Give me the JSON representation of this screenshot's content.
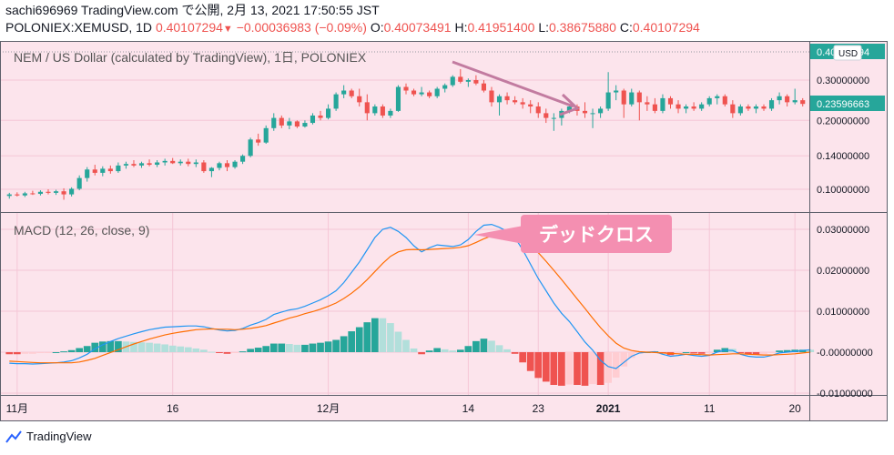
{
  "header": {
    "user_line": "sachi696969 TradingView.com で公開, 2月 13, 2021 17:50:55 JST",
    "symbol": "POLONIEX:XEMUSD, 1D",
    "last": "0.40107294",
    "change": "−0.00036983 (−0.09%)",
    "o_label": "O:",
    "o_value": "0.40073491",
    "h_label": "H:",
    "h_value": "0.41951400",
    "l_label": "L:",
    "l_value": "0.38675880",
    "c_label": "C:",
    "c_value": "0.40107294"
  },
  "price_pane": {
    "legend": "NEM / US Dollar (calculated by TradingView), 1日, POLONIEX",
    "last_price_tag": "0.40107294",
    "current_tag": "0.23596663",
    "currency": "USD"
  },
  "macd_pane": {
    "legend": "MACD (12, 26, close, 9)",
    "annotation": "デッドクロス"
  },
  "footer": {
    "brand": "TradingView"
  },
  "colors": {
    "up": "#26a69a",
    "down": "#ef5350",
    "macd": "#2196f3",
    "signal": "#ff6d00",
    "hist_up_strong": "#26a69a",
    "hist_up_weak": "#b2dfdb",
    "hist_down_strong": "#ef5350",
    "hist_down_weak": "#ffcdd2",
    "background": "#fce4ec",
    "annotation": "#f48fb1",
    "arrow": "#c27ba0"
  },
  "chart_data": [
    {
      "type": "candlestick",
      "title": "NEM / US Dollar (calculated by TradingView), 1日, POLONIEX",
      "y_axis": {
        "scale": "log",
        "ticks": [
          0.1,
          0.14,
          0.2,
          0.3
        ],
        "tick_labels": [
          "0.10000000",
          "0.14000000",
          "0.20000000",
          "0.30000000"
        ]
      },
      "x_axis": {
        "tick_labels": [
          "11月",
          "16",
          "12月",
          "14",
          "23",
          "2021",
          "11",
          "20"
        ]
      },
      "ohlc": [
        [
          0.0935,
          0.0965,
          0.091,
          0.095
        ],
        [
          0.095,
          0.097,
          0.093,
          0.094
        ],
        [
          0.094,
          0.0975,
          0.0925,
          0.096
        ],
        [
          0.096,
          0.0985,
          0.0945,
          0.0955
        ],
        [
          0.0955,
          0.099,
          0.094,
          0.0975
        ],
        [
          0.0975,
          0.1,
          0.095,
          0.0965
        ],
        [
          0.0965,
          0.0995,
          0.0945,
          0.098
        ],
        [
          0.098,
          0.101,
          0.09,
          0.095
        ],
        [
          0.095,
          0.102,
          0.093,
          0.1005
        ],
        [
          0.1005,
          0.115,
          0.099,
          0.112
        ],
        [
          0.112,
          0.125,
          0.108,
          0.122
        ],
        [
          0.122,
          0.128,
          0.115,
          0.118
        ],
        [
          0.118,
          0.126,
          0.114,
          0.123
        ],
        [
          0.123,
          0.127,
          0.117,
          0.12
        ],
        [
          0.12,
          0.131,
          0.118,
          0.127
        ],
        [
          0.127,
          0.132,
          0.123,
          0.129
        ],
        [
          0.129,
          0.134,
          0.125,
          0.127
        ],
        [
          0.127,
          0.132,
          0.124,
          0.13
        ],
        [
          0.13,
          0.135,
          0.126,
          0.128
        ],
        [
          0.128,
          0.134,
          0.125,
          0.131
        ],
        [
          0.131,
          0.136,
          0.127,
          0.133
        ],
        [
          0.133,
          0.137,
          0.129,
          0.13
        ],
        [
          0.13,
          0.135,
          0.127,
          0.132
        ],
        [
          0.132,
          0.136,
          0.126,
          0.129
        ],
        [
          0.129,
          0.135,
          0.125,
          0.131
        ],
        [
          0.131,
          0.134,
          0.118,
          0.12
        ],
        [
          0.12,
          0.125,
          0.113,
          0.124
        ],
        [
          0.124,
          0.132,
          0.121,
          0.13
        ],
        [
          0.13,
          0.134,
          0.12,
          0.125
        ],
        [
          0.125,
          0.134,
          0.123,
          0.132
        ],
        [
          0.132,
          0.142,
          0.129,
          0.14
        ],
        [
          0.14,
          0.168,
          0.138,
          0.165
        ],
        [
          0.165,
          0.175,
          0.155,
          0.16
        ],
        [
          0.16,
          0.19,
          0.158,
          0.185
        ],
        [
          0.185,
          0.215,
          0.18,
          0.205
        ],
        [
          0.205,
          0.21,
          0.185,
          0.19
        ],
        [
          0.19,
          0.205,
          0.183,
          0.198
        ],
        [
          0.198,
          0.2,
          0.185,
          0.188
        ],
        [
          0.188,
          0.2,
          0.186,
          0.195
        ],
        [
          0.195,
          0.215,
          0.192,
          0.21
        ],
        [
          0.21,
          0.22,
          0.2,
          0.205
        ],
        [
          0.205,
          0.235,
          0.202,
          0.225
        ],
        [
          0.225,
          0.265,
          0.22,
          0.26
        ],
        [
          0.26,
          0.285,
          0.25,
          0.27
        ],
        [
          0.27,
          0.275,
          0.25,
          0.255
        ],
        [
          0.255,
          0.275,
          0.23,
          0.24
        ],
        [
          0.24,
          0.26,
          0.2,
          0.215
        ],
        [
          0.215,
          0.235,
          0.21,
          0.23
        ],
        [
          0.23,
          0.235,
          0.205,
          0.21
        ],
        [
          0.21,
          0.225,
          0.205,
          0.22
        ],
        [
          0.22,
          0.285,
          0.218,
          0.28
        ],
        [
          0.28,
          0.29,
          0.26,
          0.27
        ],
        [
          0.27,
          0.275,
          0.255,
          0.26
        ],
        [
          0.26,
          0.28,
          0.255,
          0.265
        ],
        [
          0.265,
          0.27,
          0.25,
          0.255
        ],
        [
          0.255,
          0.28,
          0.25,
          0.275
        ],
        [
          0.275,
          0.29,
          0.265,
          0.285
        ],
        [
          0.285,
          0.315,
          0.28,
          0.31
        ],
        [
          0.31,
          0.335,
          0.29,
          0.295
        ],
        [
          0.295,
          0.305,
          0.28,
          0.3
        ],
        [
          0.3,
          0.315,
          0.285,
          0.29
        ],
        [
          0.29,
          0.3,
          0.265,
          0.27
        ],
        [
          0.27,
          0.28,
          0.23,
          0.24
        ],
        [
          0.24,
          0.26,
          0.21,
          0.255
        ],
        [
          0.255,
          0.265,
          0.235,
          0.245
        ],
        [
          0.245,
          0.255,
          0.235,
          0.24
        ],
        [
          0.24,
          0.25,
          0.225,
          0.235
        ],
        [
          0.235,
          0.245,
          0.215,
          0.23
        ],
        [
          0.23,
          0.24,
          0.205,
          0.215
        ],
        [
          0.215,
          0.225,
          0.195,
          0.205
        ],
        [
          0.205,
          0.215,
          0.18,
          0.205
        ],
        [
          0.205,
          0.225,
          0.19,
          0.22
        ],
        [
          0.22,
          0.235,
          0.215,
          0.23
        ],
        [
          0.23,
          0.235,
          0.21,
          0.22
        ],
        [
          0.22,
          0.24,
          0.205,
          0.215
        ],
        [
          0.215,
          0.225,
          0.185,
          0.215
        ],
        [
          0.215,
          0.23,
          0.205,
          0.225
        ],
        [
          0.225,
          0.325,
          0.22,
          0.265
        ],
        [
          0.265,
          0.285,
          0.245,
          0.27
        ],
        [
          0.27,
          0.275,
          0.205,
          0.235
        ],
        [
          0.235,
          0.275,
          0.23,
          0.265
        ],
        [
          0.265,
          0.27,
          0.2,
          0.24
        ],
        [
          0.24,
          0.255,
          0.22,
          0.235
        ],
        [
          0.235,
          0.25,
          0.215,
          0.22
        ],
        [
          0.22,
          0.26,
          0.215,
          0.25
        ],
        [
          0.25,
          0.255,
          0.225,
          0.235
        ],
        [
          0.235,
          0.245,
          0.215,
          0.225
        ],
        [
          0.225,
          0.235,
          0.215,
          0.23
        ],
        [
          0.23,
          0.24,
          0.22,
          0.225
        ],
        [
          0.225,
          0.24,
          0.22,
          0.235
        ],
        [
          0.235,
          0.255,
          0.23,
          0.25
        ],
        [
          0.25,
          0.26,
          0.235,
          0.255
        ],
        [
          0.255,
          0.26,
          0.23,
          0.235
        ],
        [
          0.235,
          0.245,
          0.205,
          0.215
        ],
        [
          0.215,
          0.235,
          0.21,
          0.23
        ],
        [
          0.23,
          0.235,
          0.22,
          0.225
        ],
        [
          0.225,
          0.235,
          0.215,
          0.23
        ],
        [
          0.23,
          0.235,
          0.22,
          0.225
        ],
        [
          0.225,
          0.25,
          0.22,
          0.245
        ],
        [
          0.245,
          0.265,
          0.235,
          0.255
        ],
        [
          0.255,
          0.26,
          0.23,
          0.24
        ],
        [
          0.24,
          0.275,
          0.235,
          0.245
        ],
        [
          0.245,
          0.25,
          0.23,
          0.236
        ]
      ]
    },
    {
      "type": "macd",
      "title": "MACD (12, 26, close, 9)",
      "y_axis": {
        "range": [
          -0.011,
          0.033
        ],
        "ticks": [
          0.03,
          0.02,
          0.01,
          0.0,
          -0.01
        ],
        "tick_labels": [
          "0.03000000",
          "0.02000000",
          "0.01000000",
          "-0.00000000",
          "-0.01000000"
        ]
      },
      "macd": [
        -0.0027,
        -0.0028,
        -0.0028,
        -0.0029,
        -0.0028,
        -0.0027,
        -0.0026,
        -0.0024,
        -0.0021,
        -0.0014,
        -0.0005,
        0.0008,
        0.0018,
        0.0026,
        0.0033,
        0.0039,
        0.0045,
        0.005,
        0.0055,
        0.0058,
        0.0061,
        0.0062,
        0.0063,
        0.0064,
        0.0064,
        0.0062,
        0.0058,
        0.0054,
        0.0052,
        0.0053,
        0.0058,
        0.0066,
        0.0072,
        0.008,
        0.0092,
        0.0098,
        0.0103,
        0.0106,
        0.0112,
        0.012,
        0.0128,
        0.0138,
        0.015,
        0.017,
        0.0195,
        0.022,
        0.025,
        0.028,
        0.03,
        0.0305,
        0.0295,
        0.028,
        0.026,
        0.0245,
        0.0255,
        0.0262,
        0.026,
        0.0258,
        0.0262,
        0.0275,
        0.0295,
        0.031,
        0.0312,
        0.0305,
        0.0295,
        0.028,
        0.025,
        0.0215,
        0.018,
        0.015,
        0.012,
        0.0095,
        0.0075,
        0.005,
        0.0025,
        0.0005,
        -0.002,
        -0.0035,
        -0.004,
        -0.0025,
        -0.001,
        -0.0002,
        0.0,
        0.0001,
        -0.0005,
        -0.001,
        -0.0008,
        -0.0005,
        -0.0008,
        -0.001,
        -0.0008,
        0.0,
        0.0005,
        0.0004,
        -0.0005,
        -0.001,
        -0.0012,
        -0.0012,
        -0.0008,
        -0.0002,
        0.0,
        0.0002,
        0.0004,
        0.0006
      ],
      "signal": [
        -0.0022,
        -0.0023,
        -0.0024,
        -0.0025,
        -0.0026,
        -0.0026,
        -0.0026,
        -0.0026,
        -0.0026,
        -0.0024,
        -0.002,
        -0.0015,
        -0.0008,
        -0.0001,
        0.0006,
        0.0013,
        0.002,
        0.0026,
        0.0032,
        0.0037,
        0.0042,
        0.0046,
        0.0049,
        0.0052,
        0.0055,
        0.0056,
        0.0057,
        0.0056,
        0.0056,
        0.0055,
        0.0056,
        0.0058,
        0.0061,
        0.0065,
        0.0071,
        0.0077,
        0.0083,
        0.0088,
        0.0094,
        0.0099,
        0.0105,
        0.0112,
        0.012,
        0.0131,
        0.0144,
        0.0159,
        0.0177,
        0.0197,
        0.0217,
        0.0234,
        0.0245,
        0.025,
        0.0251,
        0.025,
        0.0251,
        0.0252,
        0.0253,
        0.0254,
        0.0256,
        0.026,
        0.0268,
        0.0277,
        0.0284,
        0.0288,
        0.0288,
        0.0284,
        0.0275,
        0.0261,
        0.0243,
        0.0222,
        0.02,
        0.0177,
        0.0154,
        0.013,
        0.0107,
        0.0083,
        0.006,
        0.004,
        0.0022,
        0.001,
        0.0004,
        0.0001,
        0.0,
        -0.0001,
        -0.0002,
        -0.0003,
        -0.0004,
        -0.0005,
        -0.0005,
        -0.0006,
        -0.0007,
        -0.0006,
        -0.0005,
        -0.0004,
        -0.0004,
        -0.0005,
        -0.0006,
        -0.0007,
        -0.0007,
        -0.0006,
        -0.0005,
        -0.0004,
        -0.0002,
        0.0
      ]
    }
  ]
}
